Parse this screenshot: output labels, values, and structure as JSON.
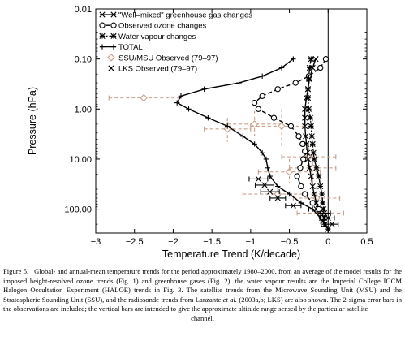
{
  "chart_data": {
    "type": "line",
    "xlabel": "Temperature Trend (K/decade)",
    "ylabel": "Pressure (hPa)",
    "xlim": [
      -3,
      0.5
    ],
    "ylim": [
      0.01,
      300
    ],
    "y_scale": "log",
    "y_inverted": true,
    "grid": false,
    "legend_position": "top-left",
    "x_ticks": [
      -3,
      -2.5,
      -2,
      -1.5,
      -1,
      -0.5,
      0,
      0.5
    ],
    "x_tick_labels": [
      "−3",
      "−2.5",
      "−2",
      "−1.5",
      "−1",
      "−0.5",
      "0",
      "0.5"
    ],
    "y_ticks": [
      0.01,
      0.1,
      1,
      10,
      100
    ],
    "y_tick_labels": [
      "0.01",
      "0.10",
      "1.00",
      "10.00",
      "100.00"
    ],
    "series": [
      {
        "name": "\"Well–mixed\" greenhouse gas changes",
        "kind": "model",
        "marker": "x",
        "dash": "solid",
        "color": "#000000",
        "points": [
          [
            -0.16,
            0.1
          ],
          [
            -0.2,
            0.15
          ],
          [
            -0.24,
            0.25
          ],
          [
            -0.26,
            0.4
          ],
          [
            -0.28,
            0.6
          ],
          [
            -0.3,
            1
          ],
          [
            -0.3,
            1.5
          ],
          [
            -0.3,
            2.2
          ],
          [
            -0.29,
            3.5
          ],
          [
            -0.28,
            5
          ],
          [
            -0.27,
            7.5
          ],
          [
            -0.26,
            10
          ],
          [
            -0.24,
            15
          ],
          [
            -0.22,
            22
          ],
          [
            -0.2,
            35
          ],
          [
            -0.18,
            50
          ],
          [
            -0.15,
            75
          ],
          [
            -0.12,
            100
          ],
          [
            -0.08,
            150
          ],
          [
            -0.04,
            200
          ],
          [
            0.0,
            250
          ]
        ]
      },
      {
        "name": "Observed ozone changes",
        "kind": "model",
        "marker": "circle",
        "dash": "dashed",
        "color": "#000000",
        "points": [
          [
            -0.03,
            0.1
          ],
          [
            -0.1,
            0.15
          ],
          [
            -0.25,
            0.22
          ],
          [
            -0.42,
            0.3
          ],
          [
            -0.65,
            0.4
          ],
          [
            -0.85,
            0.55
          ],
          [
            -0.95,
            0.75
          ],
          [
            -0.9,
            1
          ],
          [
            -0.7,
            1.5
          ],
          [
            -0.48,
            2.2
          ],
          [
            -0.38,
            3.5
          ],
          [
            -0.33,
            5
          ],
          [
            -0.3,
            7
          ],
          [
            -0.32,
            10
          ],
          [
            -0.36,
            15
          ],
          [
            -0.4,
            22
          ],
          [
            -0.35,
            35
          ],
          [
            -0.3,
            50
          ],
          [
            -0.2,
            75
          ],
          [
            -0.12,
            100
          ],
          [
            -0.08,
            150
          ],
          [
            -0.06,
            200
          ]
        ]
      },
      {
        "name": "Water vapour changes",
        "kind": "model",
        "marker": "asterisk",
        "dash": "dashdot",
        "color": "#000000",
        "points": [
          [
            -0.22,
            0.1
          ],
          [
            -0.24,
            0.15
          ],
          [
            -0.25,
            0.25
          ],
          [
            -0.26,
            0.4
          ],
          [
            -0.26,
            0.6
          ],
          [
            -0.25,
            1
          ],
          [
            -0.23,
            1.5
          ],
          [
            -0.22,
            2.2
          ],
          [
            -0.21,
            3.5
          ],
          [
            -0.2,
            5
          ],
          [
            -0.19,
            7.5
          ],
          [
            -0.18,
            10
          ],
          [
            -0.15,
            15
          ],
          [
            -0.12,
            22
          ],
          [
            -0.1,
            35
          ],
          [
            -0.08,
            50
          ],
          [
            -0.07,
            75
          ],
          [
            -0.06,
            100
          ],
          [
            -0.05,
            150
          ],
          [
            -0.04,
            200
          ]
        ]
      },
      {
        "name": "TOTAL",
        "kind": "model",
        "marker": "plus",
        "dash": "solid",
        "color": "#000000",
        "points": [
          [
            -0.45,
            0.1
          ],
          [
            -0.6,
            0.15
          ],
          [
            -0.85,
            0.22
          ],
          [
            -1.15,
            0.3
          ],
          [
            -1.6,
            0.4
          ],
          [
            -1.9,
            0.55
          ],
          [
            -1.95,
            0.75
          ],
          [
            -1.8,
            1
          ],
          [
            -1.55,
            1.5
          ],
          [
            -1.3,
            2.2
          ],
          [
            -1.1,
            3.5
          ],
          [
            -0.95,
            5
          ],
          [
            -0.85,
            7.5
          ],
          [
            -0.8,
            10
          ],
          [
            -0.78,
            15
          ],
          [
            -0.75,
            22
          ],
          [
            -0.65,
            35
          ],
          [
            -0.5,
            50
          ],
          [
            -0.35,
            75
          ],
          [
            -0.2,
            100
          ],
          [
            -0.1,
            150
          ],
          [
            -0.05,
            200
          ],
          [
            0.0,
            250
          ]
        ]
      },
      {
        "name": "SSU/MSU Observed (79–97)",
        "kind": "observation",
        "marker": "diamond",
        "color": "#c8a08c",
        "points": [
          {
            "x": -2.38,
            "y": 0.6,
            "xerr": 0.45,
            "ylo": 0.6,
            "yhi": 0.6
          },
          {
            "x": -1.3,
            "y": 2.5,
            "xerr": 0.3,
            "ylo": 1.5,
            "yhi": 4.5
          },
          {
            "x": -0.95,
            "y": 2.0,
            "xerr": 0.35,
            "ylo": 1.1,
            "yhi": 3.5
          },
          {
            "x": -0.6,
            "y": 2.2,
            "xerr": 0.4,
            "ylo": 1.0,
            "yhi": 5.5
          },
          {
            "x": -0.25,
            "y": 9.0,
            "xerr": 0.35,
            "ylo": 4.5,
            "yhi": 15
          },
          {
            "x": -0.5,
            "y": 18,
            "xerr": 0.4,
            "ylo": 10,
            "yhi": 30
          },
          {
            "x": -0.2,
            "y": 15,
            "xerr": 0.3,
            "ylo": 9,
            "yhi": 30
          },
          {
            "x": -0.65,
            "y": 50,
            "xerr": 0.45,
            "ylo": 30,
            "yhi": 80
          },
          {
            "x": -0.15,
            "y": 60,
            "xerr": 0.3,
            "ylo": 35,
            "yhi": 90
          },
          {
            "x": -0.1,
            "y": 120,
            "xerr": 0.3,
            "ylo": 80,
            "yhi": 200
          }
        ]
      },
      {
        "name": "LKS Observed (79–97)",
        "kind": "observation",
        "marker": "x",
        "color": "#000000",
        "points": [
          {
            "x": -0.9,
            "y": 25,
            "xerr": 0.12
          },
          {
            "x": -0.82,
            "y": 33,
            "xerr": 0.12
          },
          {
            "x": -0.75,
            "y": 45,
            "xerr": 0.12
          },
          {
            "x": -0.65,
            "y": 60,
            "xerr": 0.1
          },
          {
            "x": -0.45,
            "y": 85,
            "xerr": 0.1
          },
          {
            "x": -0.15,
            "y": 100,
            "xerr": 0.1
          },
          {
            "x": -0.05,
            "y": 120,
            "xerr": 0.08
          },
          {
            "x": 0.0,
            "y": 150,
            "xerr": 0.08
          },
          {
            "x": 0.05,
            "y": 200,
            "xerr": 0.08
          }
        ]
      }
    ]
  },
  "caption": {
    "label": "Figure 5.",
    "part1": "Global- and annual-mean temperature trends for the period approximately 1980–2000, from an average of the model results for the imposed height-resolved ozone trends (Fig. 1) and greenhouse gases (Fig. 2); the water vapour results are the Imperial College IGCM Halogen Occultation Experiment (HALOE) trends in Fig. 3. The satellite trends from the Microwave Sounding Unit (MSU) and the Stratospheric Sounding Unit (SSU), and the radiosonde trends from Lanzante ",
    "et_al": "et al.",
    "part2": " (2003a,b; LKS) are also shown. The 2-sigma error bars in the observations are included; the vertical bars are intended to give the approximate altitude range sensed by the particular satellite",
    "last_line": "channel."
  },
  "colors": {
    "observation_ssu": "#c8a08c",
    "model": "#000000"
  }
}
